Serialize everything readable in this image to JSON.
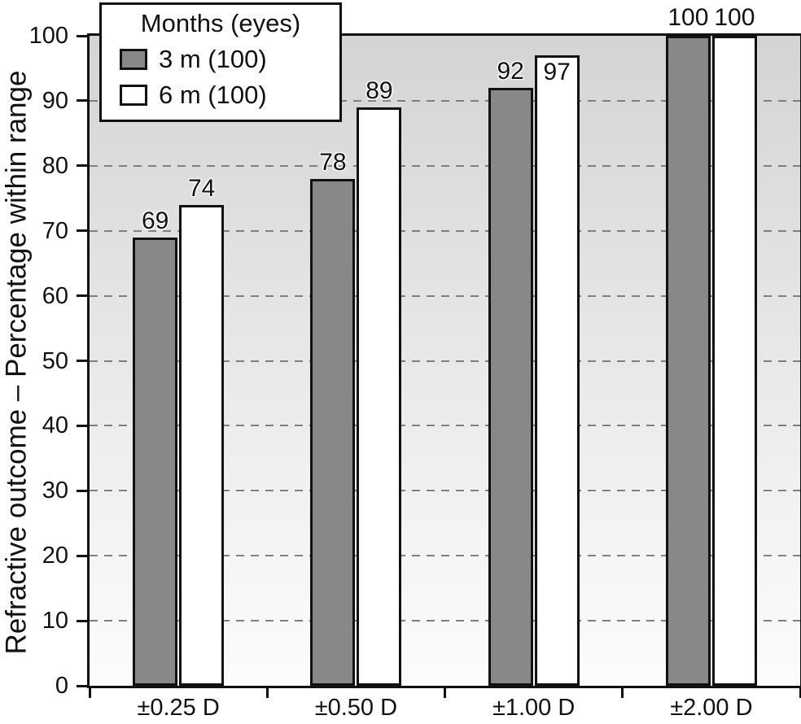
{
  "chart_data": {
    "type": "bar",
    "title": "",
    "xlabel": "",
    "ylabel": "Refractive outcome – Percentage within range",
    "categories": [
      "±0.25 D",
      "±0.50 D",
      "±1.00 D",
      "±2.00 D"
    ],
    "series": [
      {
        "name": "3 m (100)",
        "color": "#888888",
        "values": [
          69,
          78,
          92,
          100
        ]
      },
      {
        "name": "6 m (100)",
        "color": "#ffffff",
        "values": [
          74,
          89,
          97,
          100
        ]
      }
    ],
    "legend": {
      "title": "Months (eyes)",
      "position": "top-left"
    },
    "ylim": [
      0,
      100
    ],
    "yticks": [
      0,
      10,
      20,
      30,
      40,
      50,
      60,
      70,
      80,
      90,
      100
    ],
    "grid": "horizontal-dashed",
    "value_labels_shown": true,
    "colors": {
      "bar_border": "#111111",
      "axis": "#111111",
      "gridline": "#7f7f7f",
      "plot_bg_top": "#d4d4d4",
      "plot_bg_bottom": "#fcfcfc",
      "page_bg": "#ffffff",
      "text": "#111111"
    }
  }
}
